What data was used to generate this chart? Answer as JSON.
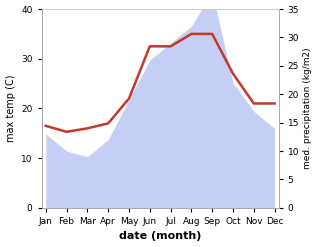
{
  "months": [
    "Jan",
    "Feb",
    "Mar",
    "Apr",
    "May",
    "Jun",
    "Jul",
    "Aug",
    "Sep",
    "Oct",
    "Nov",
    "Dec"
  ],
  "temperature": [
    16.5,
    15.3,
    16.0,
    17.0,
    22.0,
    32.5,
    32.5,
    35.0,
    35.0,
    27.0,
    21.0,
    21.0
  ],
  "precipitation": [
    13,
    10,
    9,
    12,
    19,
    26,
    29,
    32,
    38,
    22,
    17,
    14
  ],
  "temp_color": "#c0392b",
  "precip_color_fill": "#c5cff5",
  "temp_ylim": [
    0,
    40
  ],
  "precip_ylim": [
    0,
    35
  ],
  "temp_yticks": [
    0,
    10,
    20,
    30,
    40
  ],
  "precip_yticks": [
    0,
    5,
    10,
    15,
    20,
    25,
    30,
    35
  ],
  "xlabel": "date (month)",
  "ylabel_left": "max temp (C)",
  "ylabel_right": "med. precipitation (kg/m2)",
  "line_width": 1.8
}
